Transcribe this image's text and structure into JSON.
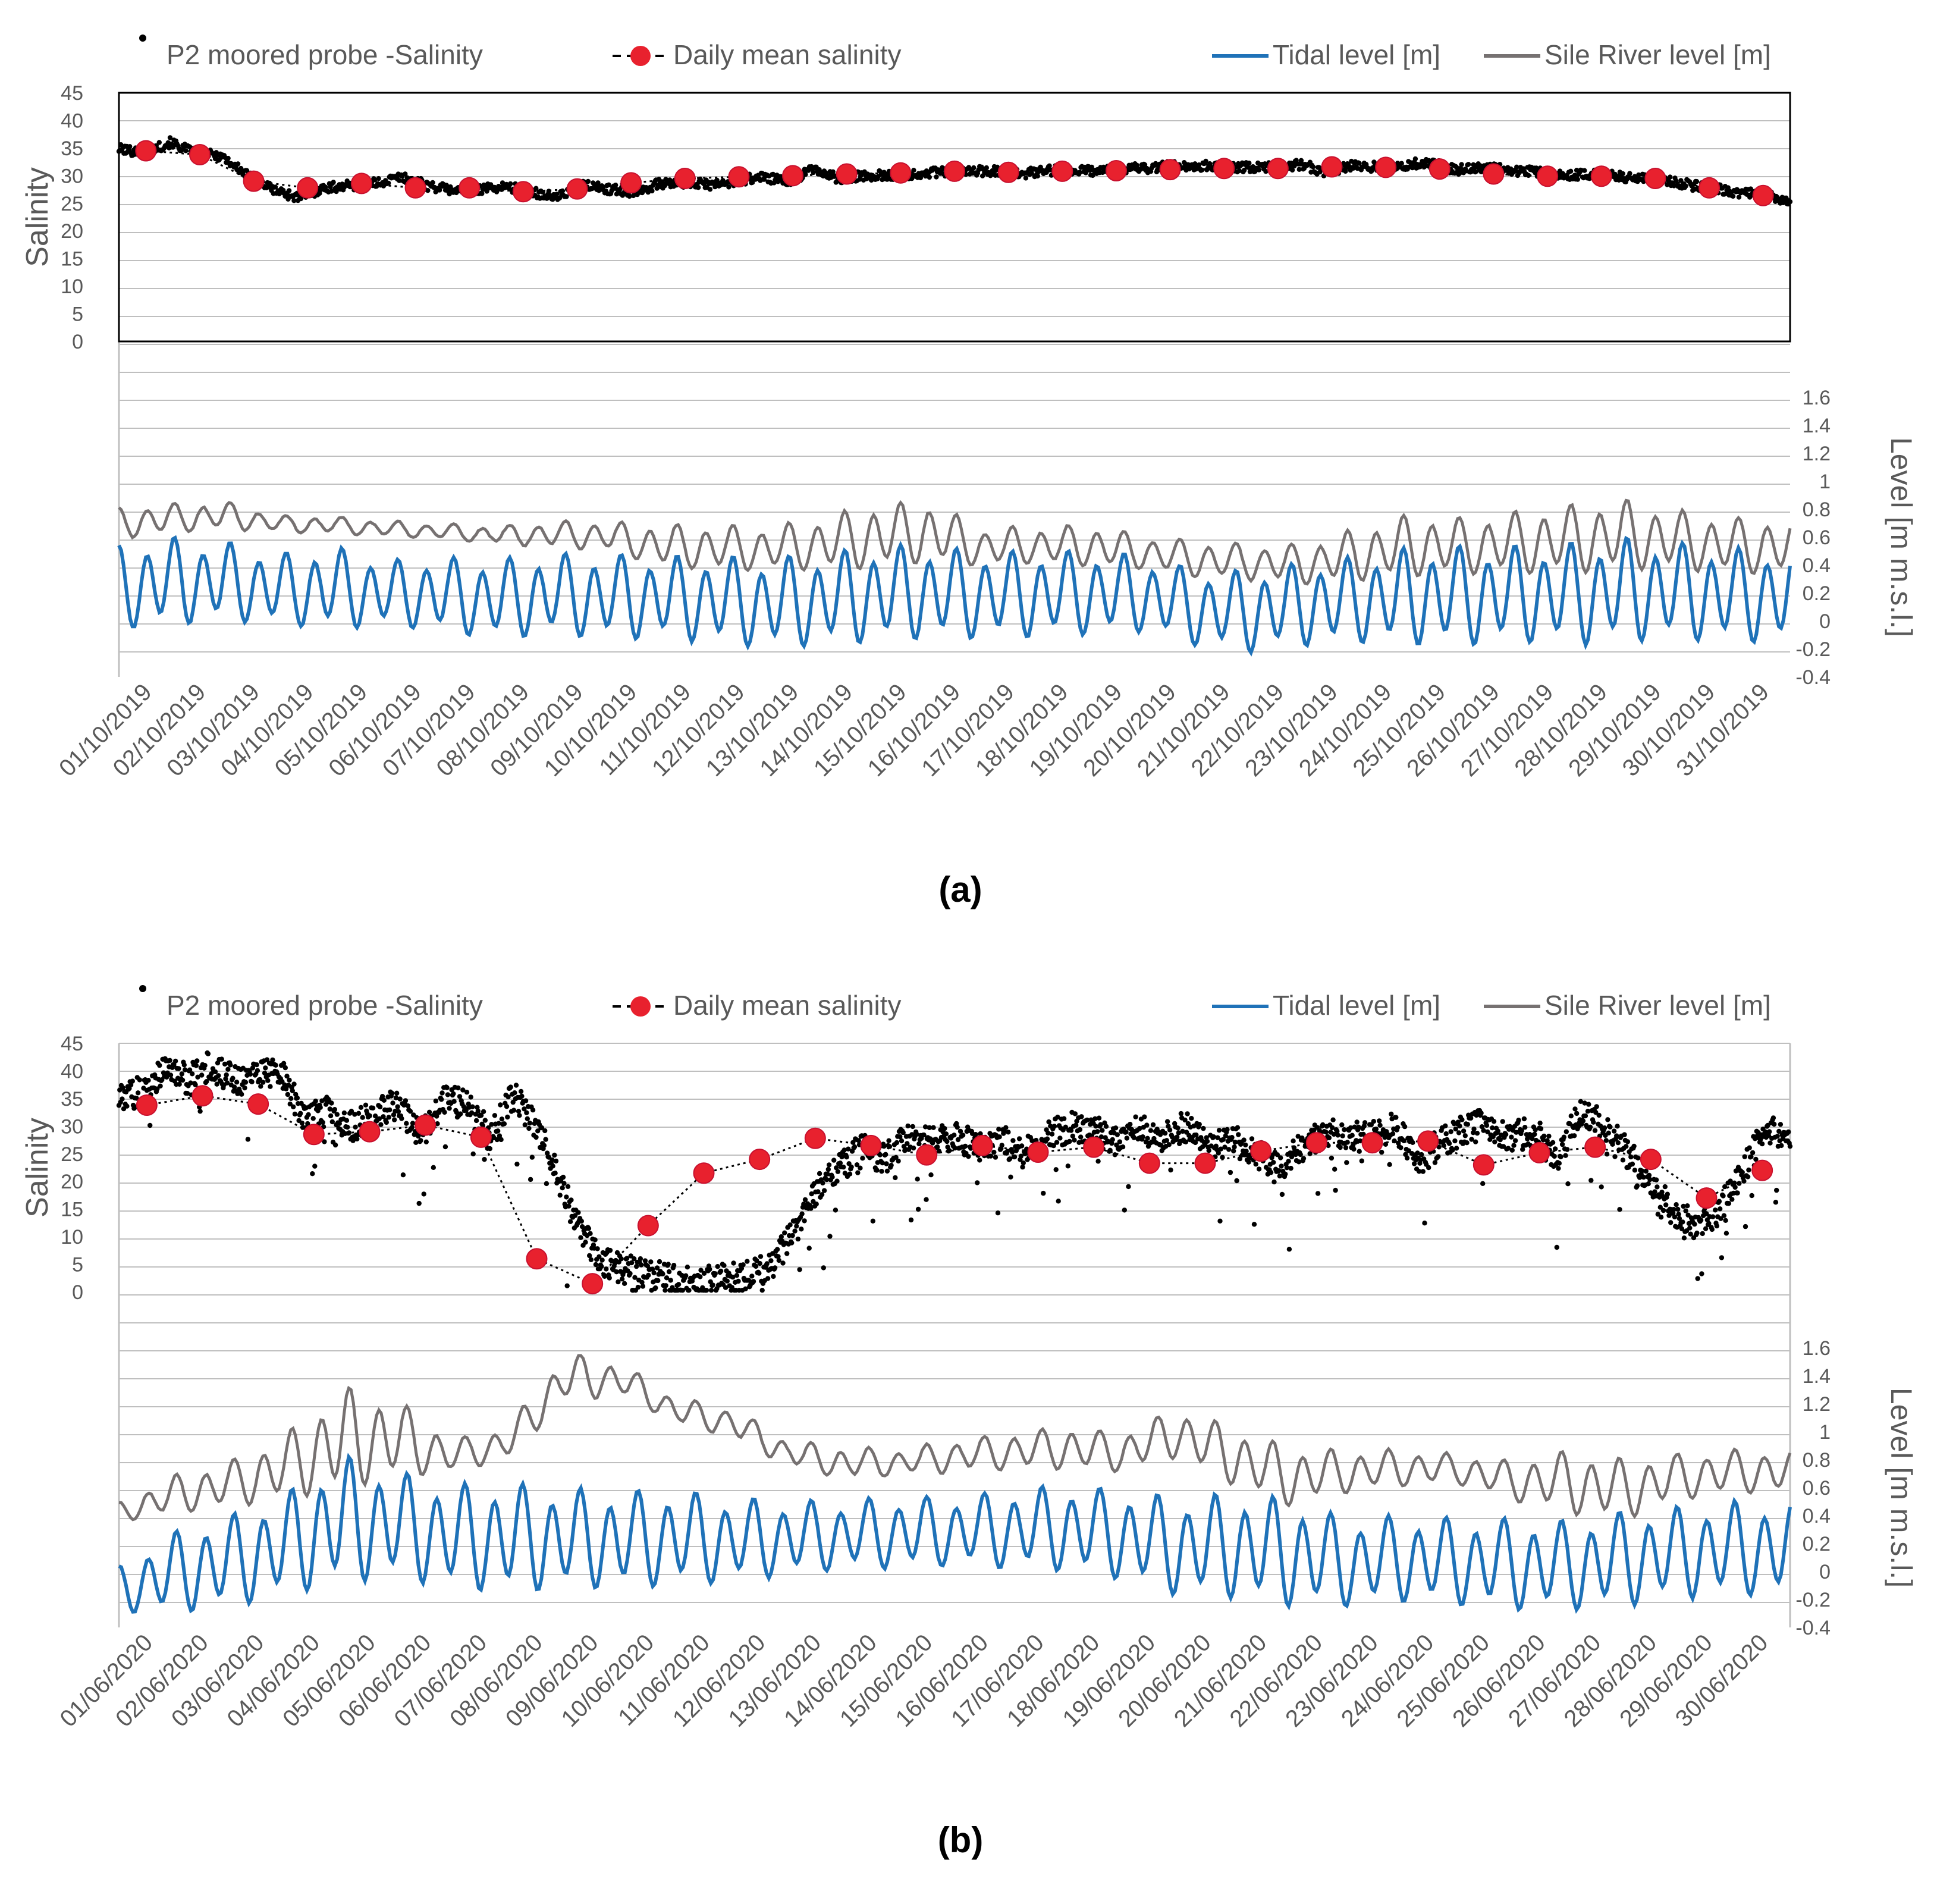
{
  "figure_labels": [
    "(a)",
    "(b)"
  ],
  "legend": {
    "probe": "P2 moored probe -Salinity",
    "daily": "Daily mean salinity",
    "tidal": "Tidal level [m]",
    "sile": "Sile River level [m]"
  },
  "colors": {
    "probe": "#000000",
    "daily_fill": "#e8212e",
    "daily_line": "#000000",
    "tidal": "#1f72b8",
    "sile": "#767171",
    "grid": "#bfbfbf",
    "axis_text": "#595959"
  },
  "chart_data": [
    {
      "type": "line",
      "panel_label": "(a)",
      "x_tick_labels": [
        "01/10/2019",
        "02/10/2019",
        "03/10/2019",
        "04/10/2019",
        "05/10/2019",
        "06/10/2019",
        "07/10/2019",
        "08/10/2019",
        "09/10/2019",
        "10/10/2019",
        "11/10/2019",
        "12/10/2019",
        "13/10/2019",
        "14/10/2019",
        "15/10/2019",
        "16/10/2019",
        "17/10/2019",
        "18/10/2019",
        "19/10/2019",
        "20/10/2019",
        "21/10/2019",
        "22/10/2019",
        "23/10/2019",
        "24/10/2019",
        "25/10/2019",
        "26/10/2019",
        "27/10/2019",
        "28/10/2019",
        "29/10/2019",
        "30/10/2019",
        "31/10/2019"
      ],
      "n_days": 31,
      "salinity_axis": {
        "label": "Salinity",
        "ylim": [
          0,
          45
        ],
        "ticks": [
          0,
          5,
          10,
          15,
          20,
          25,
          30,
          35,
          40,
          45
        ]
      },
      "level_axis": {
        "label": "Level [m m.s.l.]",
        "ylim": [
          -0.4,
          1.6
        ],
        "ticks": [
          "-0.4",
          "-0.2",
          "0",
          "0.2",
          "0.4",
          "0.6",
          "0.8",
          "1",
          "1.2",
          "1.4",
          "1.6"
        ]
      },
      "daily_mean_salinity": [
        34.5,
        33.8,
        29.0,
        27.8,
        28.6,
        27.8,
        27.8,
        27.1,
        27.6,
        28.7,
        29.5,
        29.8,
        30.0,
        30.3,
        30.5,
        30.8,
        30.6,
        30.8,
        30.9,
        31.1,
        31.3,
        31.3,
        31.6,
        31.5,
        31.2,
        30.3,
        29.9,
        29.9,
        29.5,
        27.8,
        26.4
      ],
      "probe_salinity_trace": [
        34.8,
        34.2,
        36.0,
        34.0,
        33.6,
        30.0,
        27.5,
        26.0,
        27.8,
        28.2,
        28.6,
        29.8,
        28.2,
        27.4,
        27.6,
        28.0,
        27.2,
        26.0,
        28.3,
        27.6,
        27.0,
        28.5,
        28.8,
        28.3,
        29.0,
        29.8,
        28.8,
        31.2,
        29.4,
        30.0,
        30.1,
        30.4,
        30.6,
        30.8,
        30.9,
        30.2,
        31.0,
        30.8,
        30.9,
        31.2,
        31.4,
        31.8,
        31.8,
        31.6,
        31.5,
        31.5,
        32.0,
        30.6,
        31.8,
        31.6,
        32.0,
        32.4,
        31.0,
        31.6,
        31.0,
        30.8,
        30.0,
        30.2,
        30.0,
        29.6,
        29.2,
        28.4,
        27.6,
        27.0,
        26.5,
        25.2
      ],
      "sile_level_daily_max": [
        0.82,
        0.85,
        0.86,
        0.76,
        0.75,
        0.72,
        0.7,
        0.68,
        0.72,
        0.72,
        0.7,
        0.7,
        0.68,
        0.75,
        0.85,
        0.87,
        0.68,
        0.68,
        0.7,
        0.62,
        0.58,
        0.56,
        0.56,
        0.68,
        0.78,
        0.75,
        0.8,
        0.85,
        0.88,
        0.8,
        0.75
      ],
      "sile_level_daily_min": [
        0.58,
        0.62,
        0.65,
        0.63,
        0.62,
        0.6,
        0.58,
        0.55,
        0.52,
        0.5,
        0.38,
        0.35,
        0.35,
        0.35,
        0.36,
        0.4,
        0.38,
        0.4,
        0.38,
        0.36,
        0.3,
        0.28,
        0.25,
        0.27,
        0.3,
        0.32,
        0.32,
        0.32,
        0.35,
        0.35,
        0.32
      ],
      "tidal_level_daily_max": [
        0.56,
        0.62,
        0.58,
        0.5,
        0.55,
        0.45,
        0.47,
        0.46,
        0.5,
        0.5,
        0.48,
        0.48,
        0.47,
        0.5,
        0.56,
        0.56,
        0.52,
        0.52,
        0.52,
        0.48,
        0.38,
        0.38,
        0.44,
        0.48,
        0.55,
        0.56,
        0.56,
        0.58,
        0.62,
        0.58,
        0.54
      ],
      "tidal_level_daily_min": [
        -0.08,
        -0.05,
        -0.02,
        -0.05,
        -0.08,
        -0.05,
        -0.1,
        -0.15,
        -0.12,
        -0.15,
        -0.15,
        -0.18,
        -0.22,
        -0.2,
        -0.18,
        -0.15,
        -0.15,
        -0.14,
        -0.12,
        -0.1,
        -0.2,
        -0.25,
        -0.2,
        -0.18,
        -0.2,
        -0.2,
        -0.18,
        -0.2,
        -0.18,
        -0.16,
        -0.18
      ]
    },
    {
      "type": "line",
      "panel_label": "(b)",
      "x_tick_labels": [
        "01/06/2020",
        "02/06/2020",
        "03/06/2020",
        "04/06/2020",
        "05/06/2020",
        "06/06/2020",
        "07/06/2020",
        "08/06/2020",
        "09/06/2020",
        "10/06/2020",
        "11/06/2020",
        "12/06/2020",
        "13/06/2020",
        "14/06/2020",
        "15/06/2020",
        "16/06/2020",
        "17/06/2020",
        "18/06/2020",
        "19/06/2020",
        "20/06/2020",
        "21/06/2020",
        "22/06/2020",
        "23/06/2020",
        "24/06/2020",
        "25/06/2020",
        "26/06/2020",
        "27/06/2020",
        "28/06/2020",
        "29/06/2020",
        "30/06/2020"
      ],
      "n_days": 30,
      "salinity_axis": {
        "label": "Salinity",
        "ylim": [
          0,
          45
        ],
        "ticks": [
          0,
          5,
          10,
          15,
          20,
          25,
          30,
          35,
          40,
          45
        ]
      },
      "level_axis": {
        "label": "Level [m m.s.l.]",
        "ylim": [
          -0.4,
          1.6
        ],
        "ticks": [
          "-0.4",
          "-0.2",
          "0",
          "0.2",
          "0.4",
          "0.6",
          "0.8",
          "1",
          "1.2",
          "1.4",
          "1.6"
        ]
      },
      "daily_mean_salinity": [
        33.8,
        35.5,
        34.0,
        28.5,
        29.0,
        30.2,
        28.0,
        6.0,
        1.5,
        12.0,
        21.5,
        24.0,
        27.8,
        26.5,
        24.8,
        26.5,
        25.3,
        26.2,
        23.3,
        23.3,
        25.5,
        27.0,
        27.0,
        27.3,
        23.0,
        25.2,
        26.2,
        24.0,
        17.0,
        22.0
      ],
      "probe_salinity_trace": [
        35.0,
        36.5,
        40.0,
        38.5,
        41.0,
        38.0,
        40.0,
        39.5,
        31.0,
        33.0,
        30.0,
        32.0,
        34.5,
        28.0,
        35.0,
        34.5,
        28.0,
        35.5,
        30.0,
        20.0,
        10.0,
        5.0,
        4.0,
        3.0,
        2.0,
        1.5,
        2.5,
        3.0,
        4.0,
        10.0,
        18.0,
        22.0,
        26.0,
        24.0,
        28.0,
        27.0,
        28.5,
        26.0,
        27.5,
        25.0,
        28.0,
        30.0,
        29.5,
        27.0,
        29.5,
        28.0,
        30.0,
        26.0,
        27.5,
        25.0,
        22.0,
        26.5,
        29.0,
        28.0,
        28.5,
        30.0,
        24.0,
        27.0,
        29.5,
        30.5,
        28.0,
        29.0,
        24.0,
        33.0,
        30.0,
        25.0,
        20.0,
        14.0,
        12.0,
        15.0,
        22.0,
        30.0,
        26.0
      ],
      "sile_level_daily_max": [
        0.5,
        0.7,
        0.8,
        1.0,
        1.35,
        1.25,
        0.95,
        1.05,
        1.58,
        1.5,
        1.25,
        1.18,
        0.95,
        0.9,
        0.88,
        0.95,
        1.0,
        1.05,
        1.0,
        1.18,
        1.05,
        0.9,
        0.88,
        0.88,
        0.85,
        0.8,
        0.88,
        0.82,
        0.85,
        0.88
      ],
      "sile_level_daily_min": [
        0.35,
        0.4,
        0.45,
        0.5,
        0.55,
        0.65,
        0.7,
        0.8,
        1.2,
        1.25,
        1.05,
        0.95,
        0.75,
        0.65,
        0.68,
        0.7,
        0.72,
        0.72,
        0.7,
        0.8,
        0.6,
        0.45,
        0.55,
        0.6,
        0.62,
        0.5,
        0.4,
        0.35,
        0.5,
        0.55
      ],
      "tidal_level_daily_max": [
        0.05,
        0.3,
        0.42,
        0.58,
        0.86,
        0.74,
        0.65,
        0.66,
        0.62,
        0.6,
        0.6,
        0.55,
        0.52,
        0.52,
        0.55,
        0.55,
        0.6,
        0.64,
        0.6,
        0.55,
        0.58,
        0.55,
        0.4,
        0.42,
        0.4,
        0.4,
        0.38,
        0.45,
        0.48,
        0.52
      ],
      "tidal_level_daily_min": [
        -0.3,
        -0.32,
        -0.28,
        -0.2,
        -0.12,
        -0.08,
        -0.15,
        -0.18,
        -0.15,
        -0.15,
        -0.12,
        -0.1,
        -0.05,
        0.0,
        0.0,
        0.02,
        0.0,
        -0.02,
        -0.08,
        -0.2,
        -0.22,
        -0.28,
        -0.28,
        -0.24,
        -0.26,
        -0.3,
        -0.3,
        -0.28,
        -0.22,
        -0.2
      ]
    }
  ]
}
